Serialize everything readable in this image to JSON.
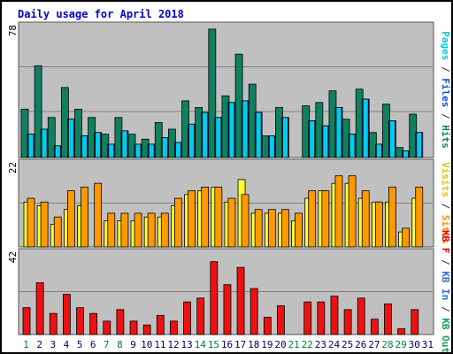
{
  "chart_data": {
    "type": "bar",
    "title": "Daily usage for April 2018",
    "categories": [
      "1",
      "2",
      "3",
      "4",
      "5",
      "6",
      "7",
      "8",
      "9",
      "10",
      "11",
      "12",
      "13",
      "14",
      "15",
      "16",
      "17",
      "18",
      "19",
      "20",
      "21",
      "22",
      "23",
      "24",
      "25",
      "26",
      "27",
      "28",
      "29",
      "30",
      "31"
    ],
    "weekend_days": [
      "1",
      "7",
      "8",
      "14",
      "15",
      "21",
      "22",
      "28",
      "29"
    ],
    "panels": [
      {
        "id": "hits-files-pages",
        "ymax_label": "78",
        "ylim": [
          0,
          78
        ],
        "axis_label_parts": [
          {
            "text": "Pages",
            "color": "#00c8e6"
          },
          {
            "text": " / ",
            "color": "#333333"
          },
          {
            "text": "Files",
            "color": "#0055dd"
          },
          {
            "text": " / ",
            "color": "#333333"
          },
          {
            "text": "Hits",
            "color": "#1a7a60"
          }
        ],
        "series": [
          {
            "name": "Hits",
            "color": "#0f8060",
            "values": [
              29,
              55,
              24,
              42,
              29,
              24,
              14,
              24,
              14,
              11,
              21,
              17,
              34,
              30,
              77,
              37,
              62,
              44,
              13,
              30,
              0,
              31,
              33,
              40,
              23,
              41,
              15,
              32,
              6,
              26,
              0
            ]
          },
          {
            "name": "Files",
            "color": "#2040c0",
            "values": [
              14,
              17,
              7,
              23,
              13,
              15,
              8,
              16,
              8,
              8,
              12,
              9,
              20,
              27,
              24,
              33,
              34,
              27,
              13,
              24,
              0,
              22,
              19,
              30,
              14,
              35,
              8,
              22,
              4,
              15,
              0
            ]
          },
          {
            "name": "Pages",
            "color": "#00ccf0",
            "values": [
              14,
              17,
              7,
              23,
              13,
              15,
              8,
              16,
              8,
              8,
              12,
              9,
              20,
              27,
              24,
              33,
              34,
              27,
              13,
              24,
              0,
              22,
              19,
              30,
              14,
              35,
              8,
              22,
              4,
              15,
              0
            ]
          }
        ]
      },
      {
        "id": "visits-sites",
        "ymax_label": "22",
        "ylim": [
          0,
          22
        ],
        "axis_label_parts": [
          {
            "text": "Visits",
            "color": "#e0c000"
          },
          {
            "text": " / ",
            "color": "#333333"
          },
          {
            "text": "Sites",
            "color": "#ff8c00"
          }
        ],
        "series": [
          {
            "name": "Visits",
            "color": "#ffff33",
            "values": [
              12,
              11,
              6,
              10,
              11,
              0,
              7,
              7,
              7,
              8,
              8,
              11,
              14,
              15,
              16,
              12,
              18,
              9,
              9,
              9,
              7,
              13,
              15,
              17,
              17,
              13,
              12,
              12,
              4,
              13,
              0
            ]
          },
          {
            "name": "Sites",
            "color": "#ff9900",
            "values": [
              13,
              12,
              8,
              15,
              16,
              17,
              9,
              9,
              9,
              9,
              9,
              13,
              15,
              16,
              16,
              13,
              14,
              10,
              10,
              10,
              9,
              15,
              15,
              19,
              19,
              15,
              12,
              16,
              5,
              16,
              0
            ]
          }
        ]
      },
      {
        "id": "kbytes",
        "ymax_label": "42",
        "ylim": [
          0,
          42
        ],
        "axis_label_parts": [
          {
            "text": "KB F",
            "color": "#ee0000"
          },
          {
            "text": " / ",
            "color": "#333333"
          },
          {
            "text": "KB In",
            "color": "#3070d0"
          },
          {
            "text": " / ",
            "color": "#333333"
          },
          {
            "text": "KB Out",
            "color": "#16a050"
          }
        ],
        "series": [
          {
            "name": "KB F",
            "color": "#ee1111",
            "values": [
              14,
              27,
              11,
              21,
              14,
              11,
              7,
              13,
              7,
              5,
              10,
              7,
              17,
              19,
              38,
              26,
              35,
              24,
              9,
              15,
              0,
              17,
              17,
              20,
              13,
              19,
              8,
              16,
              3,
              13,
              0
            ]
          }
        ]
      }
    ],
    "colors": {
      "plot_background": "#c0c0c0",
      "gridline": "#808080",
      "day_label": "#000066",
      "weekend_day_label": "#008040"
    }
  }
}
